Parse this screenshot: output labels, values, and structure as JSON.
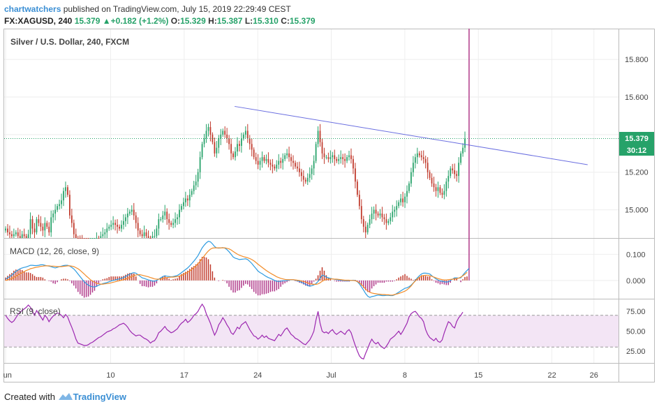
{
  "header": {
    "user": "chartwatchers",
    "published_text": "published on TradingView.com, July 15, 2019 22:29:49 CEST",
    "symbol": "FX:XAGUSD, 240",
    "last": "15.379",
    "change_arrow": "▲",
    "change": "+0.182 (+1.2%)",
    "open_label": "O:",
    "open": "15.329",
    "high_label": "H:",
    "high": "15.387",
    "low_label": "L:",
    "low": "15.310",
    "close_label": "C:",
    "close": "15.379"
  },
  "footer": {
    "created_with": "Created with",
    "brand": "TradingView",
    "logo_icon": "tradingview-logo-icon"
  },
  "colors": {
    "up": "#26a269",
    "down": "#c0392b",
    "trendline": "#6a6ee0",
    "macd": "#2d9be0",
    "signal": "#f28c28",
    "rsi": "#9c27b0",
    "rsi_band": "#f3e5f5",
    "price_tag": "#26a269"
  },
  "chart_data": [
    {
      "type": "candlestick",
      "title": "Silver / U.S. Dollar, 240, FXCM",
      "y_ticks": [
        "15.800",
        "15.600",
        "15.400",
        "15.200",
        "15.000"
      ],
      "ylim": [
        14.85,
        15.96
      ],
      "last_price_label": "15.379",
      "countdown_label": "30:12",
      "x_ticks": [
        {
          "label": "Jun",
          "day": 0
        },
        {
          "label": "10",
          "day": 10
        },
        {
          "label": "17",
          "day": 17
        },
        {
          "label": "24",
          "day": 24
        },
        {
          "label": "Jul",
          "day": 31
        },
        {
          "label": "8",
          "day": 38
        },
        {
          "label": "15",
          "day": 45
        },
        {
          "label": "22",
          "day": 52
        },
        {
          "label": "26",
          "day": 56
        }
      ],
      "trendline": [
        {
          "day": 21.8,
          "price": 15.55
        },
        {
          "day": 55.4,
          "price": 15.24
        }
      ],
      "close_series": [
        14.9,
        14.88,
        14.87,
        14.86,
        14.87,
        14.88,
        14.86,
        14.85,
        14.87,
        14.86,
        14.85,
        14.87,
        14.95,
        14.9,
        14.88,
        14.95,
        14.93,
        14.91,
        14.89,
        14.93,
        14.91,
        14.88,
        14.96,
        14.98,
        15.0,
        15.02,
        15.03,
        15.05,
        15.1,
        15.12,
        15.08,
        14.97,
        14.93,
        14.87,
        14.85,
        14.84,
        14.83,
        14.82,
        14.8,
        14.79,
        14.78,
        14.79,
        14.81,
        14.83,
        14.85,
        14.84,
        14.86,
        14.87,
        14.88,
        14.9,
        14.91,
        14.92,
        14.93,
        14.92,
        14.91,
        14.9,
        14.92,
        14.94,
        14.96,
        14.98,
        14.99,
        15.0,
        14.97,
        14.93,
        14.89,
        14.87,
        14.86,
        14.88,
        14.86,
        14.85,
        14.84,
        14.86,
        14.86,
        14.9,
        14.95,
        14.95,
        14.97,
        14.99,
        14.95,
        14.93,
        14.92,
        14.93,
        14.95,
        14.96,
        15.0,
        15.02,
        15.04,
        15.06,
        15.05,
        15.08,
        15.1,
        15.13,
        15.15,
        15.2,
        15.28,
        15.35,
        15.38,
        15.42,
        15.44,
        15.4,
        15.36,
        15.3,
        15.33,
        15.38,
        15.4,
        15.42,
        15.4,
        15.38,
        15.35,
        15.3,
        15.28,
        15.31,
        15.35,
        15.34,
        15.38,
        15.4,
        15.42,
        15.38,
        15.35,
        15.32,
        15.28,
        15.26,
        15.24,
        15.26,
        15.28,
        15.26,
        15.27,
        15.25,
        15.24,
        15.23,
        15.22,
        15.24,
        15.26,
        15.25,
        15.27,
        15.29,
        15.3,
        15.28,
        15.26,
        15.25,
        15.23,
        15.22,
        15.2,
        15.18,
        15.16,
        15.15,
        15.17,
        15.19,
        15.22,
        15.26,
        15.35,
        15.42,
        15.36,
        15.3,
        15.28,
        15.28,
        15.27,
        15.28,
        15.29,
        15.27,
        15.26,
        15.27,
        15.28,
        15.27,
        15.26,
        15.28,
        15.29,
        15.27,
        15.22,
        15.15,
        15.08,
        15.02,
        14.95,
        14.91,
        14.88,
        14.92,
        14.95,
        14.98,
        15.0,
        14.98,
        14.97,
        14.98,
        14.96,
        14.95,
        14.93,
        14.94,
        14.96,
        14.99,
        15.0,
        15.02,
        15.04,
        15.06,
        15.04,
        15.07,
        15.1,
        15.14,
        15.2,
        15.25,
        15.28,
        15.3,
        15.29,
        15.28,
        15.27,
        15.25,
        15.2,
        15.17,
        15.14,
        15.12,
        15.1,
        15.12,
        15.09,
        15.08,
        15.1,
        15.15,
        15.18,
        15.22,
        15.21,
        15.19,
        15.18,
        15.25,
        15.3,
        15.33,
        15.38
      ]
    },
    {
      "type": "line",
      "title": "MACD (12, 26, close, 9)",
      "y_ticks": [
        "0.100",
        "0.000"
      ],
      "series": [
        {
          "name": "MACD",
          "values": [
            0.005,
            0.01,
            0.015,
            0.02,
            0.028,
            0.035,
            0.04,
            0.045,
            0.048,
            0.05,
            0.052,
            0.055,
            0.058,
            0.058,
            0.057,
            0.057,
            0.058,
            0.06,
            0.06,
            0.058,
            0.056,
            0.055,
            0.053,
            0.05,
            0.048,
            0.05,
            0.053,
            0.055,
            0.057,
            0.058,
            0.058,
            0.055,
            0.05,
            0.044,
            0.035,
            0.025,
            0.015,
            0.005,
            -0.005,
            -0.012,
            -0.018,
            -0.022,
            -0.024,
            -0.025,
            -0.022,
            -0.018,
            -0.015,
            -0.012,
            -0.01,
            -0.008,
            -0.005,
            -0.002,
            0.0,
            0.002,
            0.004,
            0.006,
            0.008,
            0.011,
            0.015,
            0.02,
            0.024,
            0.028,
            0.03,
            0.028,
            0.022,
            0.016,
            0.01,
            0.008,
            0.005,
            0.002,
            0.0,
            -0.002,
            -0.003,
            0.0,
            0.005,
            0.01,
            0.015,
            0.018,
            0.016,
            0.015,
            0.014,
            0.015,
            0.017,
            0.019,
            0.024,
            0.03,
            0.036,
            0.042,
            0.048,
            0.056,
            0.065,
            0.074,
            0.084,
            0.095,
            0.11,
            0.125,
            0.135,
            0.144,
            0.15,
            0.148,
            0.14,
            0.13,
            0.125,
            0.124,
            0.125,
            0.126,
            0.124,
            0.118,
            0.11,
            0.1,
            0.09,
            0.085,
            0.083,
            0.08,
            0.081,
            0.082,
            0.083,
            0.08,
            0.073,
            0.065,
            0.055,
            0.046,
            0.036,
            0.03,
            0.026,
            0.02,
            0.015,
            0.011,
            0.008,
            0.004,
            0.0,
            -0.003,
            -0.004,
            -0.003,
            -0.001,
            -0.001,
            0.0,
            0.002,
            0.003,
            0.003,
            0.001,
            -0.001,
            -0.004,
            -0.007,
            -0.011,
            -0.015,
            -0.019,
            -0.022,
            -0.02,
            -0.017,
            -0.012,
            -0.004,
            0.008,
            0.02,
            0.018,
            0.013,
            0.01,
            0.008,
            0.006,
            0.004,
            0.003,
            0.002,
            0.001,
            0.0,
            -0.001,
            -0.001,
            -0.001,
            0.0,
            0.001,
            0.0,
            -0.005,
            -0.013,
            -0.025,
            -0.037,
            -0.05,
            -0.06,
            -0.065,
            -0.062,
            -0.06,
            -0.058,
            -0.056,
            -0.057,
            -0.058,
            -0.058,
            -0.057,
            -0.057,
            -0.058,
            -0.058,
            -0.055,
            -0.05,
            -0.045,
            -0.04,
            -0.035,
            -0.03,
            -0.028,
            -0.024,
            -0.018,
            -0.01,
            0.0,
            0.01,
            0.018,
            0.025,
            0.028,
            0.028,
            0.027,
            0.025,
            0.018,
            0.012,
            0.006,
            0.002,
            -0.002,
            -0.003,
            -0.005,
            -0.006,
            -0.005,
            0.0,
            0.005,
            0.01,
            0.01,
            0.009,
            0.01,
            0.02,
            0.03,
            0.038,
            0.046
          ]
        },
        {
          "name": "Signal",
          "values": [
            0.0,
            0.002,
            0.004,
            0.007,
            0.011,
            0.016,
            0.021,
            0.026,
            0.03,
            0.034,
            0.038,
            0.041,
            0.045,
            0.047,
            0.049,
            0.051,
            0.052,
            0.054,
            0.055,
            0.056,
            0.056,
            0.056,
            0.055,
            0.055,
            0.054,
            0.053,
            0.053,
            0.053,
            0.054,
            0.055,
            0.056,
            0.056,
            0.055,
            0.053,
            0.049,
            0.045,
            0.039,
            0.032,
            0.025,
            0.017,
            0.01,
            0.003,
            -0.003,
            -0.007,
            -0.011,
            -0.013,
            -0.014,
            -0.014,
            -0.013,
            -0.012,
            -0.011,
            -0.009,
            -0.007,
            -0.005,
            -0.003,
            -0.001,
            0.001,
            0.003,
            0.005,
            0.008,
            0.011,
            0.015,
            0.018,
            0.021,
            0.022,
            0.022,
            0.02,
            0.018,
            0.016,
            0.014,
            0.011,
            0.009,
            0.006,
            0.005,
            0.005,
            0.006,
            0.008,
            0.01,
            0.011,
            0.012,
            0.013,
            0.013,
            0.014,
            0.015,
            0.017,
            0.019,
            0.023,
            0.027,
            0.031,
            0.036,
            0.042,
            0.049,
            0.056,
            0.064,
            0.073,
            0.084,
            0.094,
            0.104,
            0.113,
            0.12,
            0.124,
            0.125,
            0.125,
            0.125,
            0.125,
            0.125,
            0.125,
            0.123,
            0.121,
            0.117,
            0.111,
            0.106,
            0.101,
            0.097,
            0.094,
            0.091,
            0.089,
            0.087,
            0.084,
            0.08,
            0.075,
            0.069,
            0.062,
            0.056,
            0.05,
            0.044,
            0.038,
            0.033,
            0.028,
            0.023,
            0.019,
            0.014,
            0.011,
            0.008,
            0.006,
            0.004,
            0.003,
            0.003,
            0.003,
            0.003,
            0.002,
            0.001,
            0.0,
            -0.002,
            -0.004,
            -0.006,
            -0.009,
            -0.012,
            -0.014,
            -0.015,
            -0.015,
            -0.013,
            -0.009,
            -0.003,
            0.001,
            0.004,
            0.005,
            0.006,
            0.006,
            0.005,
            0.005,
            0.004,
            0.003,
            0.002,
            0.001,
            0.001,
            0.001,
            0.0,
            0.0,
            -0.001,
            -0.004,
            -0.009,
            -0.016,
            -0.024,
            -0.033,
            -0.04,
            -0.045,
            -0.048,
            -0.05,
            -0.051,
            -0.052,
            -0.053,
            -0.054,
            -0.054,
            -0.055,
            -0.055,
            -0.056,
            -0.056,
            -0.054,
            -0.052,
            -0.05,
            -0.047,
            -0.044,
            -0.041,
            -0.036,
            -0.029,
            -0.021,
            -0.011,
            -0.002,
            0.006,
            0.012,
            0.016,
            0.019,
            0.02,
            0.02,
            0.018,
            0.016,
            0.013,
            0.01,
            0.007,
            0.005,
            0.003,
            0.002,
            0.002,
            0.003,
            0.004,
            0.005,
            0.006,
            0.007,
            0.009,
            0.013,
            0.018,
            0.024,
            0.031
          ]
        }
      ]
    },
    {
      "type": "line",
      "title": "RSI (9, close)",
      "y_ticks": [
        "75.00",
        "50.00",
        "25.00"
      ],
      "band": [
        30,
        70
      ],
      "series": [
        {
          "name": "RSI",
          "values": [
            70,
            66,
            63,
            61,
            63,
            67,
            71,
            74,
            76,
            78,
            80,
            83,
            80,
            75,
            70,
            76,
            72,
            68,
            64,
            70,
            67,
            62,
            66,
            69,
            71,
            73,
            72,
            70,
            67,
            71,
            68,
            61,
            55,
            48,
            40,
            35,
            34,
            33,
            32,
            32,
            33,
            35,
            36,
            38,
            40,
            42,
            43,
            45,
            47,
            49,
            50,
            51,
            53,
            54,
            56,
            58,
            59,
            60,
            58,
            55,
            51,
            48,
            46,
            44,
            45,
            45,
            43,
            41,
            40,
            38,
            35,
            37,
            38,
            42,
            48,
            50,
            53,
            56,
            52,
            50,
            48,
            49,
            51,
            53,
            57,
            60,
            62,
            65,
            61,
            63,
            66,
            70,
            72,
            75,
            80,
            84,
            80,
            72,
            66,
            60,
            52,
            45,
            50,
            58,
            62,
            67,
            63,
            58,
            54,
            48,
            46,
            50,
            55,
            53,
            58,
            60,
            62,
            57,
            52,
            48,
            44,
            43,
            40,
            42,
            45,
            42,
            44,
            41,
            40,
            39,
            38,
            42,
            46,
            44,
            48,
            52,
            54,
            50,
            46,
            44,
            41,
            40,
            38,
            36,
            34,
            33,
            36,
            39,
            44,
            50,
            64,
            75,
            60,
            50,
            48,
            49,
            47,
            50,
            52,
            48,
            46,
            48,
            50,
            48,
            46,
            50,
            52,
            48,
            40,
            32,
            25,
            19,
            16,
            15,
            22,
            28,
            35,
            40,
            36,
            34,
            36,
            32,
            30,
            28,
            31,
            35,
            40,
            42,
            44,
            47,
            50,
            46,
            50,
            55,
            60,
            68,
            72,
            74,
            75,
            72,
            68,
            66,
            62,
            52,
            46,
            42,
            40,
            38,
            41,
            37,
            36,
            39,
            48,
            55,
            62,
            60,
            56,
            54,
            62,
            67,
            70,
            74
          ]
        }
      ]
    }
  ]
}
